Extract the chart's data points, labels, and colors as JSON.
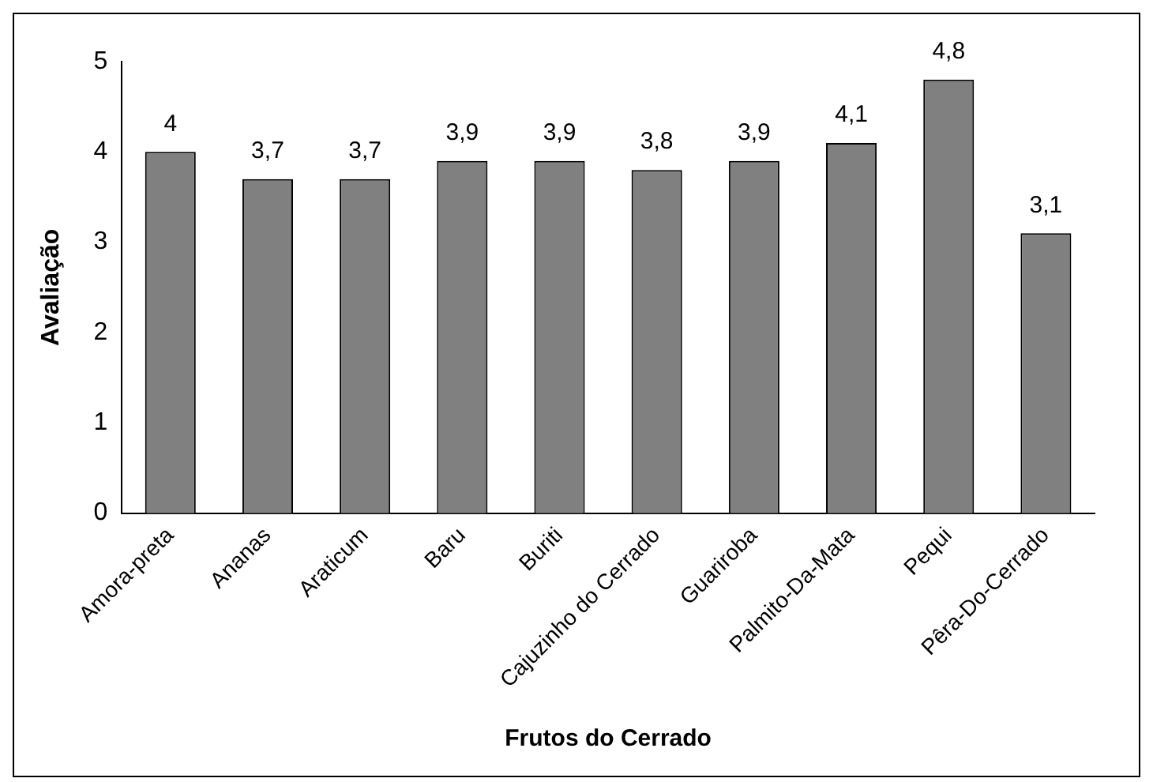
{
  "chart_data": {
    "type": "bar",
    "xlabel": "Frutos do Cerrado",
    "ylabel": "Avaliação",
    "categories": [
      "Amora-preta",
      "Ananas",
      "Araticum",
      "Baru",
      "Buriti",
      "Cajuzinho do Cerrado",
      "Guariroba",
      "Palmito-Da-Mata",
      "Pequi",
      "Pêra-Do-Cerrado"
    ],
    "values": [
      4,
      3.7,
      3.7,
      3.9,
      3.9,
      3.8,
      3.9,
      4.1,
      4.8,
      3.1
    ],
    "value_labels": [
      "4",
      "3,7",
      "3,7",
      "3,9",
      "3,9",
      "3,8",
      "3,9",
      "4,1",
      "4,8",
      "3,1"
    ],
    "color": "#808080",
    "ylim": [
      0,
      5
    ],
    "yticks": [
      0,
      1,
      2,
      3,
      4,
      5
    ],
    "grid": false,
    "legend": false
  }
}
